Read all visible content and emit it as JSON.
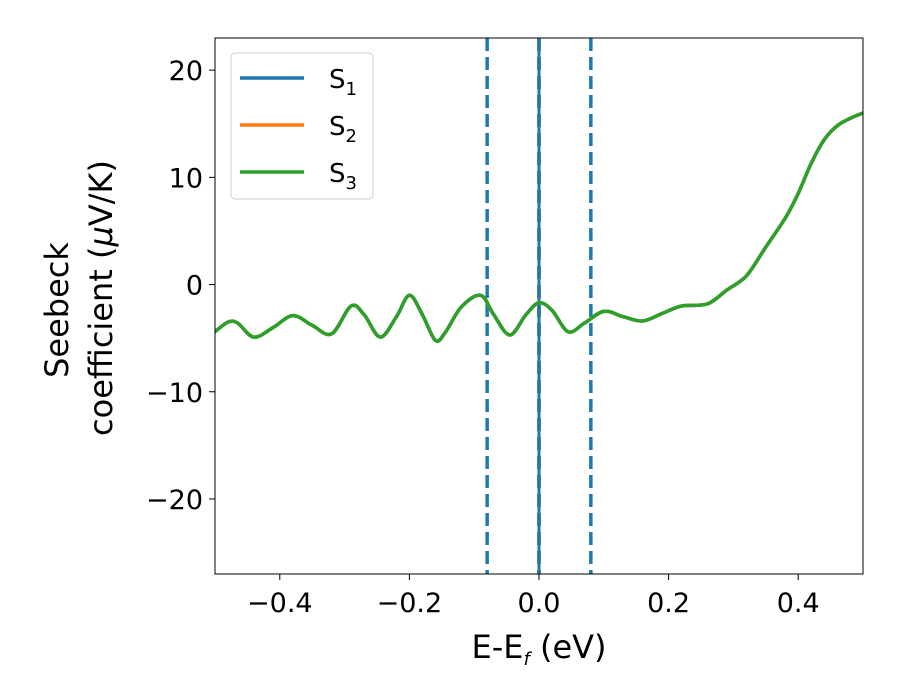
{
  "chart_data": {
    "type": "line",
    "xlabel": {
      "main": "E-E",
      "sub": "f",
      "suffix": " (eV)"
    },
    "ylabel": {
      "line1": "Seebeck",
      "line2_pre": "coefficient  (",
      "line2_mu": "μ",
      "line2_post": "V/K)"
    },
    "xlim": [
      -0.5,
      0.5
    ],
    "ylim": [
      -27,
      23
    ],
    "x_ticks": [
      -0.4,
      -0.2,
      0.0,
      0.2,
      0.4
    ],
    "x_tick_labels": [
      "−0.4",
      "−0.2",
      "0.0",
      "0.2",
      "0.4"
    ],
    "y_ticks": [
      -20,
      -10,
      0,
      10,
      20
    ],
    "y_tick_labels": [
      "−20",
      "−10",
      "0",
      "10",
      "20"
    ],
    "grid": false,
    "legend_position": "top-left",
    "vlines": [
      {
        "x": -0.08,
        "style": "dashed",
        "color": "#1f77b4"
      },
      {
        "x": 0.0,
        "style": "dashed",
        "color": "#000000"
      },
      {
        "x": 0.0,
        "style": "solid",
        "color": "#1f77b4"
      },
      {
        "x": 0.08,
        "style": "dashed",
        "color": "#1f77b4"
      }
    ],
    "x": [
      -0.5,
      -0.48,
      -0.465,
      -0.44,
      -0.41,
      -0.38,
      -0.35,
      -0.32,
      -0.29,
      -0.27,
      -0.245,
      -0.22,
      -0.2,
      -0.18,
      -0.16,
      -0.145,
      -0.12,
      -0.09,
      -0.07,
      -0.045,
      -0.02,
      0.0,
      0.02,
      0.045,
      0.07,
      0.1,
      0.13,
      0.16,
      0.19,
      0.22,
      0.26,
      0.29,
      0.32,
      0.35,
      0.38,
      0.4,
      0.42,
      0.44,
      0.46,
      0.48,
      0.5
    ],
    "series": [
      {
        "name": "S",
        "sub": "1",
        "color": "#1f77b4",
        "values": [
          -4.4,
          -3.5,
          -3.6,
          -4.9,
          -4.0,
          -2.9,
          -3.8,
          -4.6,
          -2.0,
          -2.8,
          -4.9,
          -3.0,
          -1.0,
          -2.8,
          -5.2,
          -4.5,
          -2.1,
          -1.0,
          -2.8,
          -4.7,
          -2.8,
          -1.7,
          -2.4,
          -4.4,
          -3.6,
          -2.5,
          -3.0,
          -3.4,
          -2.7,
          -2.0,
          -1.8,
          -0.5,
          0.8,
          3.5,
          6.2,
          8.5,
          11.3,
          13.5,
          14.8,
          15.5,
          16.0
        ]
      },
      {
        "name": "S",
        "sub": "2",
        "color": "#ff7f0e",
        "values": [
          -4.4,
          -3.5,
          -3.6,
          -4.9,
          -4.0,
          -2.9,
          -3.8,
          -4.6,
          -2.0,
          -2.8,
          -4.9,
          -3.0,
          -1.0,
          -2.8,
          -5.2,
          -4.5,
          -2.1,
          -1.0,
          -2.8,
          -4.7,
          -2.8,
          -1.7,
          -2.4,
          -4.4,
          -3.6,
          -2.5,
          -3.0,
          -3.4,
          -2.7,
          -2.0,
          -1.8,
          -0.5,
          0.8,
          3.5,
          6.2,
          8.5,
          11.3,
          13.5,
          14.8,
          15.5,
          16.0
        ]
      },
      {
        "name": "S",
        "sub": "3",
        "color": "#2ca02c",
        "values": [
          -4.4,
          -3.5,
          -3.6,
          -4.9,
          -4.0,
          -2.9,
          -3.8,
          -4.6,
          -2.0,
          -2.8,
          -4.9,
          -3.0,
          -1.0,
          -2.8,
          -5.2,
          -4.5,
          -2.1,
          -1.0,
          -2.8,
          -4.7,
          -2.8,
          -1.7,
          -2.4,
          -4.4,
          -3.6,
          -2.5,
          -3.0,
          -3.4,
          -2.7,
          -2.0,
          -1.8,
          -0.5,
          0.8,
          3.5,
          6.2,
          8.5,
          11.3,
          13.5,
          14.8,
          15.5,
          16.0
        ]
      }
    ]
  }
}
